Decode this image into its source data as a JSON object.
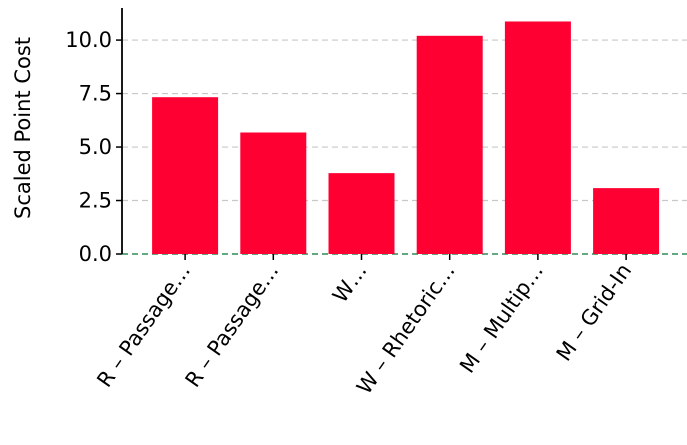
{
  "chart_data": {
    "type": "bar",
    "title": "",
    "xlabel": "",
    "ylabel": "Scaled Point Cost",
    "categories": [
      "R – Passage…",
      "R – Passage…",
      "W…",
      "W – Rhetoric…",
      "M – Multip…",
      "M – Grid-In"
    ],
    "values": [
      7.33,
      5.68,
      3.78,
      10.2,
      10.87,
      3.08
    ],
    "ylim": [
      0,
      11.5
    ],
    "yticks": [
      0.0,
      2.5,
      5.0,
      7.5,
      10.0
    ],
    "ytick_labels": [
      "0.0",
      "2.5",
      "5.0",
      "7.5",
      "10.0"
    ],
    "grid": true,
    "grid_axis": "y",
    "grid_style": "dashed",
    "legend": "none",
    "bar_color": "#ff0033",
    "grid_color": "#c8c8c8",
    "baseline_color": "#2e8b57",
    "axis_color": "#000000"
  }
}
